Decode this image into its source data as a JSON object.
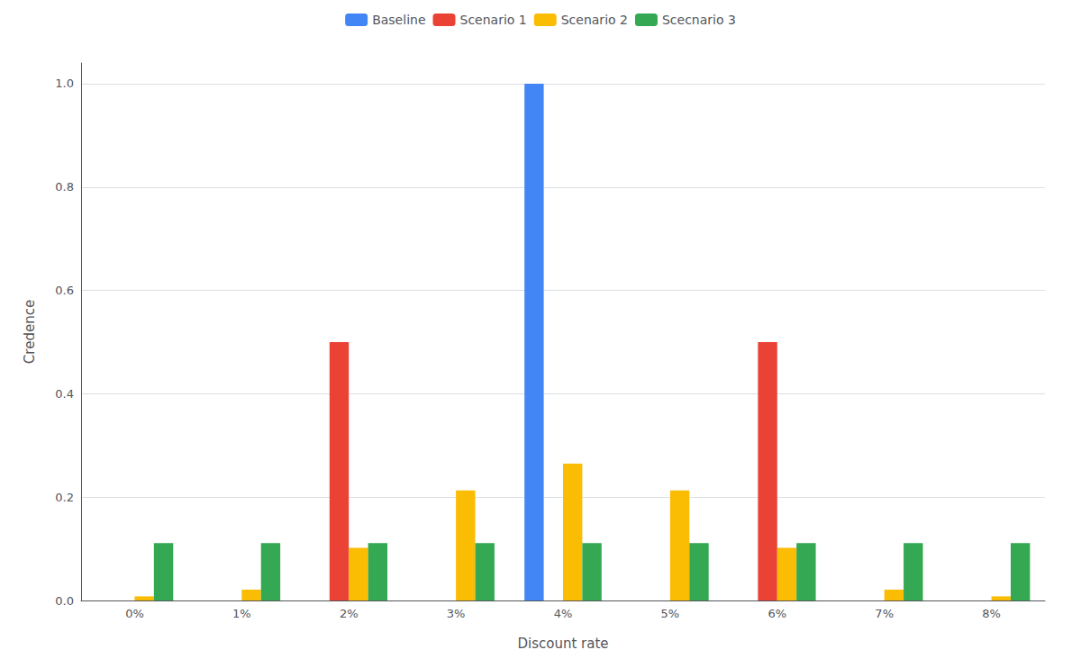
{
  "chart_data": {
    "type": "bar",
    "categories": [
      "0%",
      "1%",
      "2%",
      "3%",
      "4%",
      "5%",
      "6%",
      "7%",
      "8%"
    ],
    "series": [
      {
        "name": "Baseline",
        "color": "#4285F4",
        "values": [
          0,
          0,
          0,
          0,
          1.0,
          0,
          0,
          0,
          0
        ]
      },
      {
        "name": "Scenario 1",
        "color": "#EA4335",
        "values": [
          0,
          0,
          0.5,
          0,
          0,
          0,
          0.5,
          0,
          0
        ]
      },
      {
        "name": "Scenario 2",
        "color": "#FBBC04",
        "values": [
          0.008,
          0.021,
          0.102,
          0.213,
          0.265,
          0.213,
          0.102,
          0.021,
          0.008
        ]
      },
      {
        "name": "Scecnario 3",
        "color": "#34A853",
        "values": [
          0.111,
          0.111,
          0.111,
          0.111,
          0.111,
          0.111,
          0.111,
          0.111,
          0.111
        ]
      }
    ],
    "xlabel": "Discount rate",
    "ylabel": "Credence",
    "ylim": [
      0,
      1.04
    ],
    "yticks": [
      {
        "value": 0,
        "label": "0.0"
      },
      0.2,
      0.4,
      0.6,
      0.8,
      {
        "value": 1,
        "label": "1.0"
      }
    ],
    "grid": true,
    "legend": "top"
  }
}
